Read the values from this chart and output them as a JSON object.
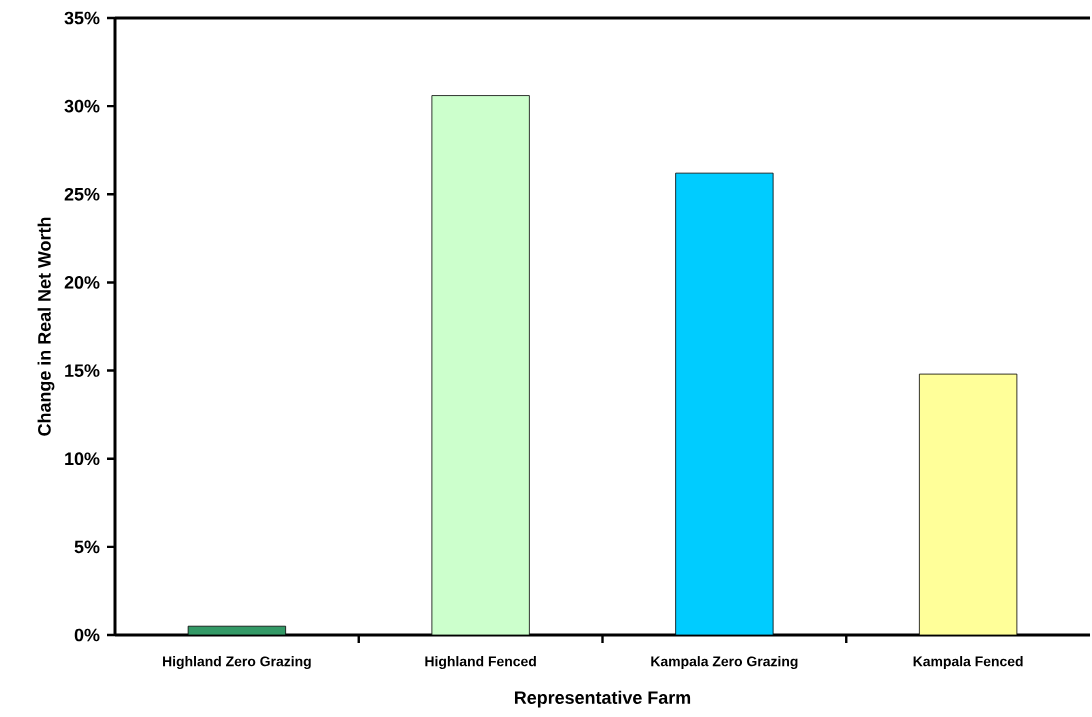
{
  "chart_data": {
    "type": "bar",
    "xlabel": "Representative Farm",
    "ylabel": "Change in Real Net Worth",
    "categories": [
      "Highland Zero Grazing",
      "Highland Fenced",
      "Kampala Zero Grazing",
      "Kampala Fenced"
    ],
    "values": [
      0.5,
      30.6,
      26.2,
      14.8
    ],
    "colors": [
      "#339966",
      "#ccffcc",
      "#00ccff",
      "#ffff99"
    ],
    "ylim": [
      0,
      35
    ],
    "yticks": [
      {
        "value": 0,
        "label": "0%"
      },
      {
        "value": 5,
        "label": "5%"
      },
      {
        "value": 10,
        "label": "10%"
      },
      {
        "value": 15,
        "label": "15%"
      },
      {
        "value": 20,
        "label": "20%"
      },
      {
        "value": 25,
        "label": "25%"
      },
      {
        "value": 30,
        "label": "30%"
      },
      {
        "value": 35,
        "label": "35%"
      }
    ],
    "grid": false
  }
}
